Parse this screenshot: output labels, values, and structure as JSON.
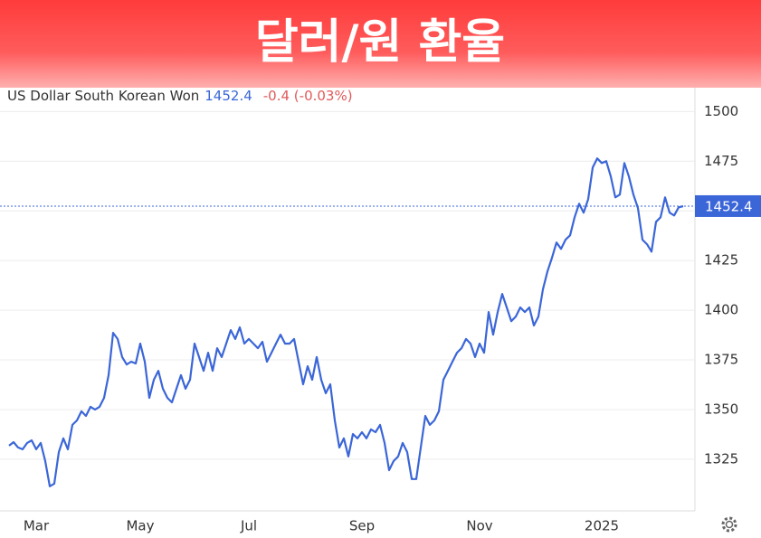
{
  "header": {
    "title": "달러/원 환율"
  },
  "chart_data": {
    "type": "line",
    "series_name": "US Dollar South Korean Won",
    "last_value": 1452.4,
    "change": "-0.4 (-0.03%)",
    "color": "#3b66d8",
    "ylim": [
      1299,
      1512
    ],
    "yticks": [
      1325,
      1350,
      1375,
      1400,
      1425,
      1450,
      1475,
      1500
    ],
    "grid": true,
    "categories": [
      null,
      null,
      null,
      null,
      null,
      null,
      "Mar",
      null,
      null,
      null,
      null,
      null,
      null,
      null,
      null,
      null,
      null,
      null,
      null,
      null,
      null,
      null,
      null,
      null,
      null,
      null,
      null,
      null,
      null,
      "May",
      null,
      null,
      null,
      null,
      null,
      null,
      null,
      null,
      null,
      null,
      null,
      null,
      null,
      null,
      null,
      null,
      null,
      null,
      null,
      null,
      null,
      null,
      null,
      "Jul",
      null,
      null,
      null,
      null,
      null,
      null,
      null,
      null,
      null,
      null,
      null,
      null,
      null,
      null,
      null,
      null,
      null,
      null,
      null,
      null,
      null,
      null,
      null,
      null,
      "Sep",
      null,
      null,
      null,
      null,
      null,
      null,
      null,
      null,
      null,
      null,
      null,
      null,
      null,
      null,
      null,
      null,
      null,
      null,
      null,
      null,
      null,
      null,
      null,
      null,
      null,
      "Nov",
      null,
      null,
      null,
      null,
      null,
      null,
      null,
      null,
      null,
      null,
      null,
      null,
      null,
      null,
      null,
      null,
      null,
      null,
      null,
      null,
      null,
      null,
      null,
      null,
      null,
      null,
      "2025",
      null,
      null,
      null,
      null,
      null,
      null,
      null,
      null,
      null,
      null,
      null,
      null,
      null,
      null,
      null,
      null,
      null,
      null
    ],
    "values": [
      1331.8,
      1333.6,
      1330.9,
      1330.0,
      1333.2,
      1334.5,
      1330.0,
      1333.2,
      1324.1,
      1311.4,
      1312.7,
      1328.6,
      1335.5,
      1330.0,
      1342.3,
      1344.5,
      1349.1,
      1346.8,
      1351.4,
      1350.0,
      1351.4,
      1355.9,
      1367.3,
      1388.6,
      1385.5,
      1376.4,
      1372.7,
      1374.1,
      1373.2,
      1383.2,
      1374.1,
      1355.9,
      1365.0,
      1369.5,
      1360.5,
      1355.9,
      1353.6,
      1360.5,
      1367.3,
      1360.5,
      1365.0,
      1383.2,
      1376.4,
      1369.5,
      1378.6,
      1369.5,
      1380.9,
      1376.4,
      1383.2,
      1390.0,
      1385.5,
      1391.4,
      1383.2,
      1385.5,
      1383.2,
      1380.9,
      1384.1,
      1374.1,
      1378.6,
      1383.2,
      1387.7,
      1383.2,
      1383.2,
      1385.5,
      1374.1,
      1362.7,
      1371.8,
      1365.0,
      1376.4,
      1365.0,
      1358.2,
      1362.7,
      1344.5,
      1330.9,
      1335.5,
      1326.4,
      1337.7,
      1335.5,
      1338.6,
      1335.5,
      1340.0,
      1338.6,
      1342.3,
      1333.2,
      1319.5,
      1324.1,
      1326.4,
      1333.2,
      1328.6,
      1315.0,
      1315.0,
      1330.9,
      1346.8,
      1342.3,
      1344.5,
      1349.1,
      1365.0,
      1369.5,
      1374.1,
      1378.6,
      1380.9,
      1385.5,
      1383.2,
      1376.4,
      1383.2,
      1378.6,
      1399.1,
      1387.7,
      1399.1,
      1408.2,
      1401.4,
      1394.5,
      1396.8,
      1401.4,
      1399.1,
      1401.4,
      1392.3,
      1396.8,
      1410.5,
      1419.5,
      1426.4,
      1434.1,
      1430.9,
      1435.5,
      1437.7,
      1446.8,
      1453.6,
      1449.1,
      1455.9,
      1471.8,
      1476.4,
      1474.1,
      1475.0,
      1467.3,
      1456.8,
      1458.2,
      1474.1,
      1467.3,
      1458.2,
      1451.4,
      1435.5,
      1433.2,
      1429.5,
      1444.5,
      1446.8,
      1456.8,
      1449.1,
      1447.7,
      1451.8,
      1452.4
    ]
  }
}
